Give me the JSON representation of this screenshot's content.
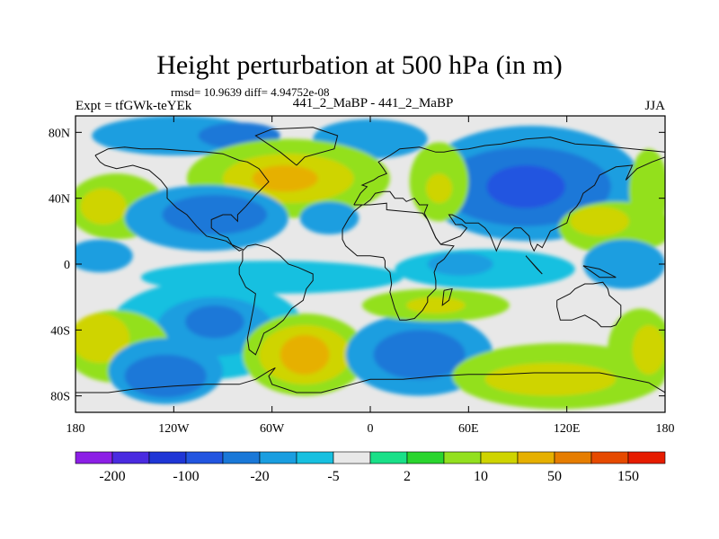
{
  "chart_data": {
    "type": "filled-contour-map",
    "title": "Height perturbation at 500 hPa (in m)",
    "stats_line": "rmsd= 10.9639 diff= 4.94752e-08",
    "left_label": "Expt = tfGWk-teYEk",
    "center_label": "441_2_MaBP - 441_2_MaBP",
    "right_label": "JJA",
    "x_axis": {
      "range": [
        -180,
        180
      ],
      "ticks": [
        -180,
        -120,
        -60,
        0,
        60,
        120,
        180
      ],
      "tick_labels": [
        "180",
        "120W",
        "60W",
        "0",
        "60E",
        "120E",
        "180"
      ]
    },
    "y_axis": {
      "range": [
        -90,
        90
      ],
      "ticks": [
        80,
        40,
        0,
        -40,
        -80
      ],
      "tick_labels": [
        "80N",
        "40N",
        "0",
        "40S",
        "80S"
      ]
    },
    "colorbar": {
      "boundaries": [
        "-200",
        "-100",
        "-20",
        "-5",
        "2",
        "10",
        "50",
        "150"
      ],
      "colors": [
        "#8c1fe6",
        "#4a2be0",
        "#1f36d6",
        "#2255e0",
        "#1a78d8",
        "#1a9ee0",
        "#17c0e0",
        "#e8e8e8",
        "#19e088",
        "#2ad52e",
        "#93e01f",
        "#cfd400",
        "#e6b000",
        "#e67d00",
        "#e64a00",
        "#e61c00"
      ]
    },
    "regions": [
      {
        "level": 5,
        "lon": -118,
        "lat": 78,
        "rx": 52,
        "ry": 12
      },
      {
        "level": 4,
        "lon": -80,
        "lat": 78,
        "rx": 25,
        "ry": 8
      },
      {
        "level": 5,
        "lon": 0,
        "lat": 76,
        "rx": 35,
        "ry": 12
      },
      {
        "level": 10,
        "lon": -50,
        "lat": 52,
        "rx": 62,
        "ry": 24
      },
      {
        "level": 11,
        "lon": -50,
        "lat": 52,
        "rx": 40,
        "ry": 15
      },
      {
        "level": 12,
        "lon": -52,
        "lat": 52,
        "rx": 20,
        "ry": 8
      },
      {
        "level": 5,
        "lon": 98,
        "lat": 49,
        "rx": 68,
        "ry": 35
      },
      {
        "level": 4,
        "lon": 95,
        "lat": 47,
        "rx": 52,
        "ry": 24
      },
      {
        "level": 3,
        "lon": 95,
        "lat": 47,
        "rx": 24,
        "ry": 13
      },
      {
        "level": 10,
        "lon": 42,
        "lat": 50,
        "rx": 18,
        "ry": 24
      },
      {
        "level": 11,
        "lon": 42,
        "lat": 46,
        "rx": 8,
        "ry": 9
      },
      {
        "level": 10,
        "lon": -155,
        "lat": 35,
        "rx": 30,
        "ry": 20
      },
      {
        "level": 11,
        "lon": -163,
        "lat": 35,
        "rx": 14,
        "ry": 11
      },
      {
        "level": 5,
        "lon": -100,
        "lat": 28,
        "rx": 50,
        "ry": 20
      },
      {
        "level": 4,
        "lon": -95,
        "lat": 30,
        "rx": 32,
        "ry": 12
      },
      {
        "level": 5,
        "lon": -25,
        "lat": 28,
        "rx": 18,
        "ry": 10
      },
      {
        "level": 10,
        "lon": 150,
        "lat": 22,
        "rx": 35,
        "ry": 16
      },
      {
        "level": 11,
        "lon": 140,
        "lat": 26,
        "rx": 18,
        "ry": 9
      },
      {
        "level": 10,
        "lon": 170,
        "lat": 45,
        "rx": 12,
        "ry": 25
      },
      {
        "level": 6,
        "lon": -60,
        "lat": -8,
        "rx": 80,
        "ry": 10
      },
      {
        "level": 6,
        "lon": 70,
        "lat": -3,
        "rx": 55,
        "ry": 12
      },
      {
        "level": 5,
        "lon": 55,
        "lat": 0,
        "rx": 20,
        "ry": 7
      },
      {
        "level": 6,
        "lon": -100,
        "lat": -40,
        "rx": 60,
        "ry": 30
      },
      {
        "level": 5,
        "lon": -95,
        "lat": -38,
        "rx": 35,
        "ry": 18
      },
      {
        "level": 4,
        "lon": -95,
        "lat": -35,
        "rx": 18,
        "ry": 10
      },
      {
        "level": 10,
        "lon": -40,
        "lat": -55,
        "rx": 38,
        "ry": 25
      },
      {
        "level": 11,
        "lon": -40,
        "lat": -55,
        "rx": 28,
        "ry": 18
      },
      {
        "level": 12,
        "lon": -40,
        "lat": -55,
        "rx": 15,
        "ry": 12
      },
      {
        "level": 5,
        "lon": 30,
        "lat": -55,
        "rx": 45,
        "ry": 25
      },
      {
        "level": 4,
        "lon": 30,
        "lat": -55,
        "rx": 28,
        "ry": 15
      },
      {
        "level": 10,
        "lon": 40,
        "lat": -25,
        "rx": 45,
        "ry": 10
      },
      {
        "level": 11,
        "lon": 40,
        "lat": -25,
        "rx": 18,
        "ry": 5
      },
      {
        "level": 10,
        "lon": -155,
        "lat": -50,
        "rx": 32,
        "ry": 22
      },
      {
        "level": 11,
        "lon": -165,
        "lat": -45,
        "rx": 18,
        "ry": 15
      },
      {
        "level": 5,
        "lon": -125,
        "lat": -65,
        "rx": 35,
        "ry": 20
      },
      {
        "level": 4,
        "lon": -125,
        "lat": -68,
        "rx": 25,
        "ry": 13
      },
      {
        "level": 10,
        "lon": 115,
        "lat": -68,
        "rx": 65,
        "ry": 20
      },
      {
        "level": 11,
        "lon": 110,
        "lat": -70,
        "rx": 40,
        "ry": 10
      },
      {
        "level": 10,
        "lon": 165,
        "lat": -52,
        "rx": 20,
        "ry": 25
      },
      {
        "level": 11,
        "lon": 170,
        "lat": -52,
        "rx": 10,
        "ry": 15
      },
      {
        "level": 5,
        "lon": 155,
        "lat": 0,
        "rx": 25,
        "ry": 15
      },
      {
        "level": 5,
        "lon": -165,
        "lat": 5,
        "rx": 20,
        "ry": 10
      }
    ],
    "coastlines": [
      [
        [
          -168,
          66
        ],
        [
          -160,
          70
        ],
        [
          -150,
          71
        ],
        [
          -140,
          70
        ],
        [
          -128,
          70
        ],
        [
          -115,
          69
        ],
        [
          -100,
          68
        ],
        [
          -90,
          67
        ],
        [
          -80,
          63
        ],
        [
          -75,
          62
        ],
        [
          -68,
          58
        ],
        [
          -62,
          50
        ],
        [
          -67,
          45
        ],
        [
          -70,
          42
        ],
        [
          -76,
          35
        ],
        [
          -81,
          30
        ],
        [
          -81,
          26
        ],
        [
          -85,
          30
        ],
        [
          -90,
          30
        ],
        [
          -97,
          27
        ],
        [
          -97,
          22
        ],
        [
          -92,
          18
        ],
        [
          -87,
          16
        ],
        [
          -84,
          11
        ],
        [
          -80,
          8
        ],
        [
          -78,
          9
        ],
        [
          -85,
          12
        ],
        [
          -88,
          14
        ],
        [
          -92,
          15
        ],
        [
          -100,
          17
        ],
        [
          -106,
          23
        ],
        [
          -112,
          30
        ],
        [
          -115,
          32
        ],
        [
          -118,
          34
        ],
        [
          -124,
          40
        ],
        [
          -124,
          46
        ],
        [
          -128,
          51
        ],
        [
          -135,
          57
        ],
        [
          -145,
          60
        ],
        [
          -155,
          58
        ],
        [
          -162,
          60
        ],
        [
          -165,
          62
        ],
        [
          -168,
          66
        ]
      ],
      [
        [
          -78,
          8
        ],
        [
          -75,
          11
        ],
        [
          -70,
          12
        ],
        [
          -62,
          10
        ],
        [
          -55,
          5
        ],
        [
          -50,
          0
        ],
        [
          -44,
          -2
        ],
        [
          -35,
          -6
        ],
        [
          -35,
          -10
        ],
        [
          -39,
          -15
        ],
        [
          -41,
          -22
        ],
        [
          -48,
          -27
        ],
        [
          -53,
          -34
        ],
        [
          -58,
          -38
        ],
        [
          -65,
          -42
        ],
        [
          -68,
          -50
        ],
        [
          -70,
          -55
        ],
        [
          -74,
          -52
        ],
        [
          -75,
          -45
        ],
        [
          -73,
          -35
        ],
        [
          -71,
          -25
        ],
        [
          -70,
          -18
        ],
        [
          -76,
          -14
        ],
        [
          -80,
          -6
        ],
        [
          -80,
          -2
        ],
        [
          -78,
          2
        ],
        [
          -78,
          8
        ]
      ],
      [
        [
          -10,
          36
        ],
        [
          -6,
          43
        ],
        [
          -2,
          47
        ],
        [
          -5,
          48
        ],
        [
          2,
          51
        ],
        [
          5,
          53
        ],
        [
          10,
          55
        ],
        [
          8,
          58
        ],
        [
          5,
          62
        ],
        [
          12,
          66
        ],
        [
          18,
          70
        ],
        [
          30,
          71
        ],
        [
          40,
          68
        ],
        [
          45,
          68
        ],
        [
          50,
          69
        ],
        [
          60,
          70
        ],
        [
          70,
          72
        ],
        [
          80,
          73
        ],
        [
          95,
          76
        ],
        [
          110,
          77
        ],
        [
          125,
          73
        ],
        [
          140,
          72
        ],
        [
          160,
          70
        ],
        [
          170,
          69
        ],
        [
          180,
          68
        ]
      ],
      [
        [
          180,
          65
        ],
        [
          172,
          62
        ],
        [
          163,
          58
        ],
        [
          156,
          51
        ],
        [
          160,
          60
        ],
        [
          150,
          59
        ],
        [
          140,
          54
        ],
        [
          137,
          48
        ],
        [
          130,
          43
        ],
        [
          128,
          38
        ],
        [
          126,
          35
        ],
        [
          122,
          31
        ],
        [
          120,
          25
        ],
        [
          110,
          20
        ],
        [
          108,
          16
        ],
        [
          105,
          10
        ],
        [
          102,
          12
        ],
        [
          100,
          8
        ],
        [
          98,
          12
        ],
        [
          97,
          17
        ],
        [
          92,
          22
        ],
        [
          88,
          22
        ],
        [
          80,
          15
        ],
        [
          77,
          8
        ],
        [
          73,
          18
        ],
        [
          70,
          22
        ],
        [
          66,
          25
        ],
        [
          58,
          25
        ],
        [
          56,
          27
        ],
        [
          50,
          30
        ],
        [
          48,
          30
        ],
        [
          52,
          24
        ],
        [
          56,
          24
        ],
        [
          59,
          22
        ],
        [
          55,
          17
        ],
        [
          45,
          13
        ],
        [
          43,
          12
        ],
        [
          40,
          16
        ],
        [
          35,
          27
        ],
        [
          33,
          31
        ],
        [
          35,
          36
        ],
        [
          30,
          36
        ],
        [
          27,
          40
        ],
        [
          22,
          38
        ],
        [
          20,
          40
        ],
        [
          15,
          40
        ],
        [
          12,
          44
        ],
        [
          8,
          44
        ],
        [
          3,
          43
        ],
        [
          0,
          39
        ],
        [
          -4,
          36
        ],
        [
          -10,
          36
        ]
      ],
      [
        [
          -17,
          21
        ],
        [
          -17,
          15
        ],
        [
          -15,
          11
        ],
        [
          -8,
          5
        ],
        [
          0,
          5
        ],
        [
          8,
          4
        ],
        [
          9,
          2
        ],
        [
          9,
          -2
        ],
        [
          12,
          -5
        ],
        [
          13,
          -12
        ],
        [
          12,
          -17
        ],
        [
          15,
          -27
        ],
        [
          18,
          -34
        ],
        [
          22,
          -34
        ],
        [
          27,
          -33
        ],
        [
          32,
          -28
        ],
        [
          35,
          -23
        ],
        [
          35,
          -20
        ],
        [
          40,
          -15
        ],
        [
          40,
          -10
        ],
        [
          39,
          -5
        ],
        [
          41,
          0
        ],
        [
          45,
          3
        ],
        [
          51,
          11
        ],
        [
          43,
          12
        ],
        [
          40,
          16
        ],
        [
          35,
          27
        ],
        [
          32,
          31
        ],
        [
          20,
          32
        ],
        [
          10,
          33
        ],
        [
          10,
          37
        ],
        [
          0,
          36
        ],
        [
          -5,
          36
        ],
        [
          -10,
          32
        ],
        [
          -13,
          28
        ],
        [
          -17,
          21
        ]
      ],
      [
        [
          114,
          -22
        ],
        [
          114,
          -26
        ],
        [
          116,
          -34
        ],
        [
          123,
          -34
        ],
        [
          131,
          -31
        ],
        [
          138,
          -35
        ],
        [
          141,
          -38
        ],
        [
          147,
          -38
        ],
        [
          150,
          -37
        ],
        [
          153,
          -32
        ],
        [
          153,
          -25
        ],
        [
          146,
          -19
        ],
        [
          145,
          -15
        ],
        [
          142,
          -11
        ],
        [
          136,
          -12
        ],
        [
          131,
          -12
        ],
        [
          125,
          -15
        ],
        [
          122,
          -18
        ],
        [
          114,
          -22
        ]
      ],
      [
        [
          -180,
          -78
        ],
        [
          -160,
          -78
        ],
        [
          -145,
          -76
        ],
        [
          -120,
          -74
        ],
        [
          -100,
          -73
        ],
        [
          -80,
          -73
        ],
        [
          -70,
          -70
        ],
        [
          -62,
          -65
        ],
        [
          -58,
          -63
        ],
        [
          -62,
          -68
        ],
        [
          -60,
          -73
        ],
        [
          -45,
          -78
        ],
        [
          -30,
          -78
        ],
        [
          -15,
          -74
        ],
        [
          0,
          -70
        ],
        [
          20,
          -70
        ],
        [
          40,
          -68
        ],
        [
          60,
          -67
        ],
        [
          80,
          -67
        ],
        [
          100,
          -66
        ],
        [
          120,
          -66
        ],
        [
          140,
          -66
        ],
        [
          160,
          -70
        ],
        [
          170,
          -72
        ],
        [
          180,
          -78
        ]
      ],
      [
        [
          45,
          -16
        ],
        [
          50,
          -15
        ],
        [
          48,
          -22
        ],
        [
          44,
          -25
        ],
        [
          45,
          -16
        ]
      ],
      [
        [
          95,
          5
        ],
        [
          105,
          -6
        ],
        [
          102,
          -3
        ],
        [
          95,
          5
        ]
      ],
      [
        [
          130,
          -1
        ],
        [
          140,
          -3
        ],
        [
          150,
          -8
        ],
        [
          140,
          -8
        ],
        [
          130,
          -1
        ]
      ],
      [
        [
          -45,
          60
        ],
        [
          -40,
          65
        ],
        [
          -22,
          70
        ],
        [
          -20,
          78
        ],
        [
          -35,
          83
        ],
        [
          -60,
          82
        ],
        [
          -70,
          78
        ],
        [
          -55,
          68
        ],
        [
          -45,
          60
        ]
      ]
    ]
  }
}
